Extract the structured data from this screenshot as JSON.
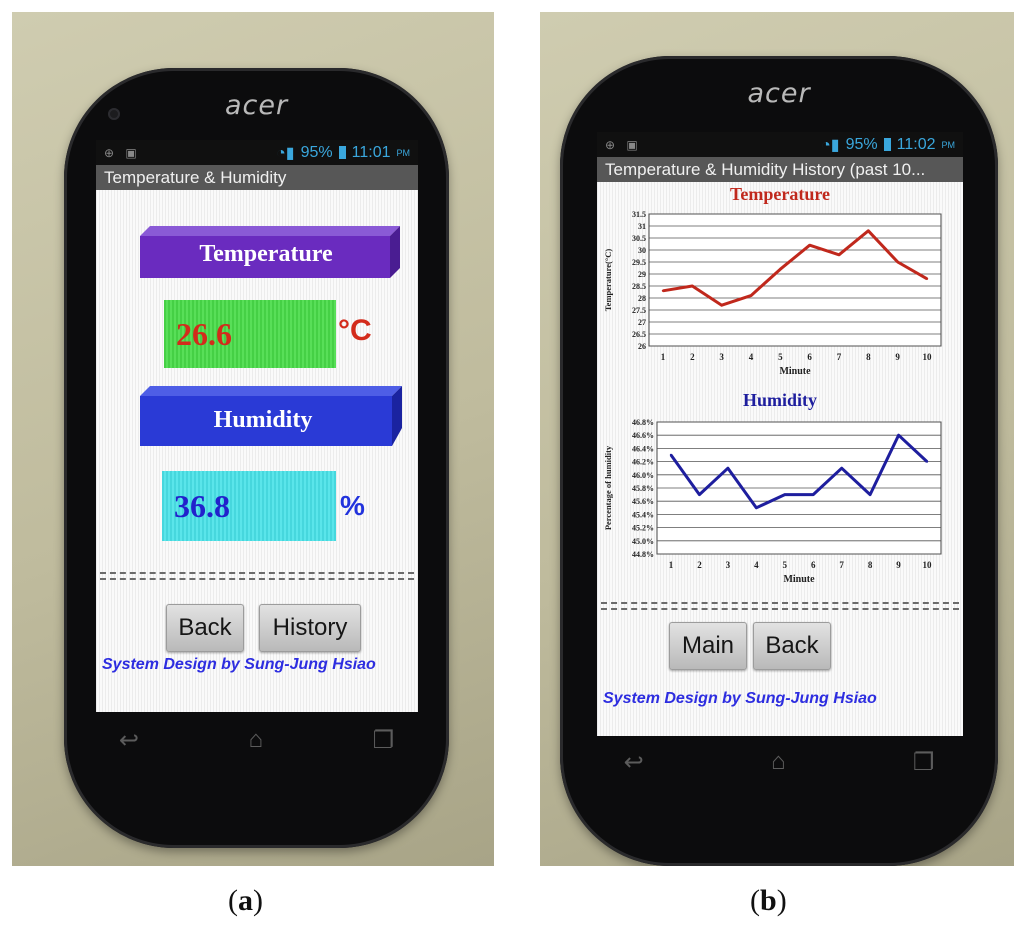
{
  "panel_a": {
    "brand": "acer",
    "status": {
      "battery": "95%",
      "time": "11:01",
      "ampm": "PM"
    },
    "title": "Temperature & Humidity",
    "temperature_label": "Temperature",
    "temperature_value": "26.6",
    "temperature_unit": "°C",
    "humidity_label": "Humidity",
    "humidity_value": "36.8",
    "humidity_unit": "%",
    "buttons": {
      "back": "Back",
      "history": "History"
    },
    "credit": "System Design by Sung-Jung Hsiao",
    "caption_letter": "a"
  },
  "panel_b": {
    "brand": "acer",
    "status": {
      "battery": "95%",
      "time": "11:02",
      "ampm": "PM"
    },
    "title": "Temperature & Humidity History (past 10...",
    "buttons": {
      "main": "Main",
      "back": "Back"
    },
    "credit": "System Design by Sung-Jung Hsiao",
    "caption_letter": "b"
  },
  "colors": {
    "temperature": "#c0281c",
    "humidity": "#1e1e9e",
    "banner_temp": "#6a2bbf",
    "banner_hum": "#2a3ad6"
  },
  "chart_data": [
    {
      "type": "line",
      "title": "Temperature",
      "xlabel": "Minute",
      "ylabel": "Temperature(°C)",
      "x": [
        1,
        2,
        3,
        4,
        5,
        6,
        7,
        8,
        9,
        10
      ],
      "x_tick_labels": [
        "1",
        "2",
        "3",
        "4",
        "5",
        "6",
        "7",
        "8",
        "9",
        "10"
      ],
      "y_tick_labels": [
        "26",
        "26.5",
        "27",
        "27.5",
        "28",
        "28.5",
        "29",
        "29.5",
        "30",
        "30.5",
        "31",
        "31.5"
      ],
      "ylim": [
        26,
        31.5
      ],
      "series": [
        {
          "values": [
            28.3,
            28.5,
            27.7,
            28.1,
            29.2,
            30.2,
            29.8,
            30.8,
            29.5,
            28.8
          ]
        }
      ],
      "grid": true
    },
    {
      "type": "line",
      "title": "Humidity",
      "xlabel": "Minute",
      "ylabel": "Percentage of humidity",
      "x": [
        1,
        2,
        3,
        4,
        5,
        6,
        7,
        8,
        9,
        10
      ],
      "x_tick_labels": [
        "1",
        "2",
        "3",
        "4",
        "5",
        "6",
        "7",
        "8",
        "9",
        "10"
      ],
      "y_tick_labels": [
        "44.8%",
        "45.0%",
        "45.2%",
        "45.4%",
        "45.6%",
        "45.8%",
        "46.0%",
        "46.2%",
        "46.4%",
        "46.6%",
        "46.8%"
      ],
      "ylim": [
        44.8,
        46.8
      ],
      "series": [
        {
          "values": [
            46.3,
            45.7,
            46.1,
            45.5,
            45.7,
            45.7,
            46.1,
            45.7,
            46.6,
            46.2
          ]
        }
      ],
      "grid": true
    }
  ]
}
